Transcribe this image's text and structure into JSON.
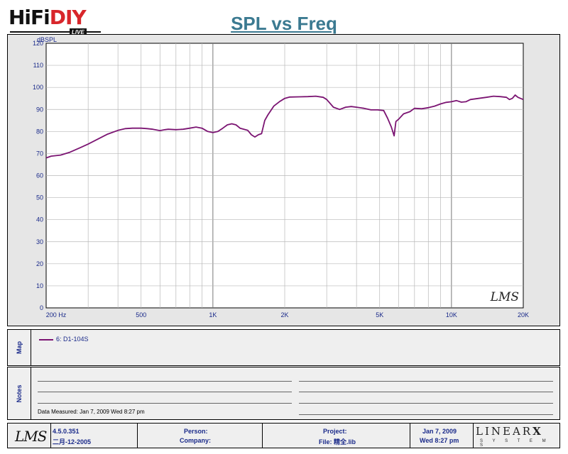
{
  "header": {
    "logo_a": "HiFi",
    "logo_b": "DIY",
    "logo_live": "LIVE",
    "title": "SPL vs Freq"
  },
  "chart_data": {
    "type": "line",
    "title": "SPL vs Freq",
    "ylabel": "dBSPL",
    "xlabel": "",
    "x_scale": "log",
    "xlim": [
      200,
      20000
    ],
    "ylim": [
      0,
      120
    ],
    "yticks": [
      0,
      10,
      20,
      30,
      40,
      50,
      60,
      70,
      80,
      90,
      100,
      110,
      120
    ],
    "xtick_labels": [
      {
        "x": 200,
        "label": "200  Hz"
      },
      {
        "x": 500,
        "label": "500"
      },
      {
        "x": 1000,
        "label": "1K"
      },
      {
        "x": 2000,
        "label": "2K"
      },
      {
        "x": 5000,
        "label": "5K"
      },
      {
        "x": 10000,
        "label": "10K"
      },
      {
        "x": 20000,
        "label": "20K"
      }
    ],
    "grid": true,
    "watermark": "LMS",
    "series": [
      {
        "name": "6: D1-104S",
        "color": "#7b1472",
        "x": [
          200,
          210,
          230,
          250,
          280,
          300,
          330,
          360,
          400,
          430,
          460,
          500,
          530,
          560,
          600,
          630,
          650,
          700,
          750,
          800,
          850,
          900,
          950,
          1000,
          1050,
          1100,
          1150,
          1200,
          1250,
          1300,
          1350,
          1400,
          1450,
          1500,
          1550,
          1600,
          1650,
          1700,
          1800,
          1900,
          2000,
          2100,
          2300,
          2500,
          2700,
          2900,
          3000,
          3200,
          3400,
          3600,
          3800,
          4000,
          4300,
          4600,
          4900,
          5200,
          5400,
          5600,
          5750,
          5850,
          6000,
          6300,
          6700,
          7000,
          7500,
          8000,
          8500,
          9000,
          9500,
          10000,
          10500,
          11000,
          11500,
          12000,
          13000,
          14000,
          15000,
          16000,
          17000,
          17500,
          18000,
          18500,
          19000,
          20000
        ],
        "y": [
          68,
          68.8,
          69.3,
          70.5,
          72.8,
          74.3,
          76.6,
          78.7,
          80.5,
          81.3,
          81.5,
          81.5,
          81.3,
          81.0,
          80.4,
          80.8,
          81.0,
          80.8,
          81.0,
          81.5,
          82.0,
          81.5,
          80.0,
          79.5,
          80.0,
          81.5,
          83.0,
          83.5,
          83.0,
          81.5,
          81.0,
          80.5,
          78.5,
          77.5,
          78.5,
          79.0,
          85.0,
          87.5,
          91.5,
          93.5,
          95.0,
          95.6,
          95.7,
          95.8,
          96.0,
          95.5,
          94.5,
          91.0,
          90.0,
          91.0,
          91.3,
          91.0,
          90.5,
          89.8,
          89.8,
          89.5,
          86.0,
          82.0,
          78.0,
          84.5,
          85.5,
          88.0,
          89.0,
          90.5,
          90.3,
          90.8,
          91.5,
          92.5,
          93.2,
          93.5,
          94.0,
          93.3,
          93.5,
          94.5,
          95.0,
          95.5,
          96.0,
          95.8,
          95.5,
          94.5,
          95.0,
          96.5,
          95.5,
          94.5
        ]
      }
    ]
  },
  "map": {
    "tab_label": "Map",
    "legend_label": "6: D1-104S"
  },
  "notes": {
    "tab_label": "Notes",
    "date_measured": "Data Measured: Jan  7, 2009  Wed  8:27 pm"
  },
  "footer": {
    "logo": "LMS",
    "version": "4.5.0.351",
    "version_date": "二月-12-2005",
    "person_label": "Person:",
    "company_label": "Company:",
    "project_label": "Project:",
    "file_label": "File: 精全.lib",
    "date": "Jan  7, 2009",
    "time": "Wed  8:27 pm",
    "brand": "LINEAR",
    "brand_x": "X",
    "brand_sub": "S Y S T E M S"
  }
}
